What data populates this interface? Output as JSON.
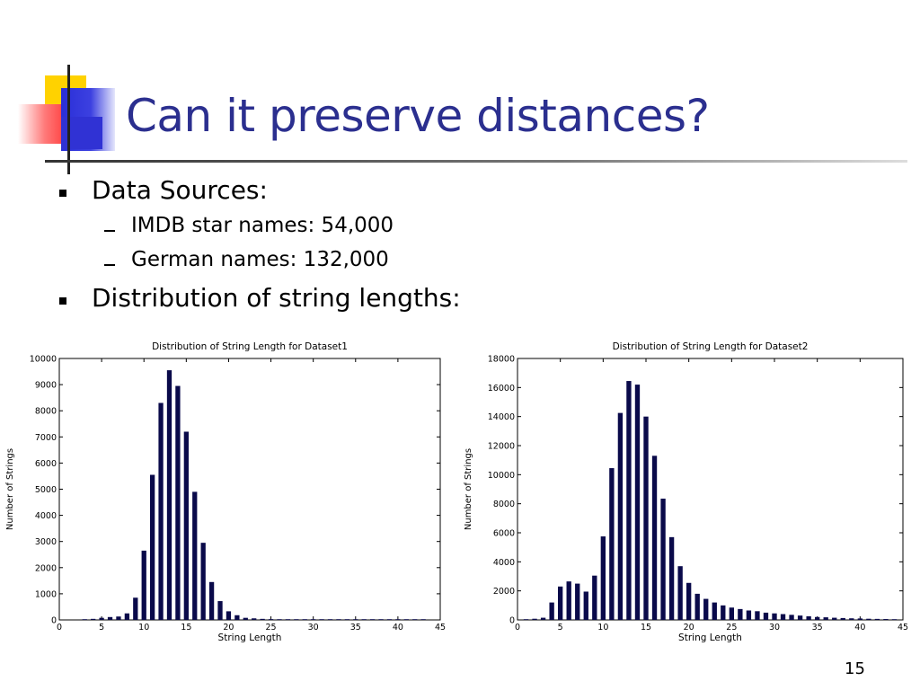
{
  "slide": {
    "title": "Can it preserve distances?",
    "page_number": "15",
    "bullets": [
      {
        "text": "Data Sources:"
      },
      {
        "text": "Distribution of string lengths:"
      }
    ],
    "sub_bullets": [
      {
        "text": "IMDB star names: 54,000"
      },
      {
        "text": "German names: 132,000"
      }
    ],
    "colors": {
      "title": "#2b2f8f",
      "bars": "#0a0a4a",
      "accent_yellow": "#ffd200",
      "accent_red": "#ff2020",
      "accent_blue": "#3032d4"
    }
  },
  "chart_data": [
    {
      "type": "bar",
      "title": "Distribution of String Length for Dataset1",
      "xlabel": "String Length",
      "ylabel": "Number of Strings",
      "xlim": [
        0,
        45
      ],
      "ylim": [
        0,
        10000
      ],
      "xticks": [
        0,
        5,
        10,
        15,
        20,
        25,
        30,
        35,
        40,
        45
      ],
      "yticks": [
        0,
        1000,
        2000,
        3000,
        4000,
        5000,
        6000,
        7000,
        8000,
        9000,
        10000
      ],
      "x": [
        3,
        4,
        5,
        6,
        7,
        8,
        9,
        10,
        11,
        12,
        13,
        14,
        15,
        16,
        17,
        18,
        19,
        20,
        21,
        22,
        23,
        24,
        25,
        26,
        27,
        28,
        29,
        30,
        31,
        32,
        33,
        34,
        35,
        36,
        37,
        38,
        39,
        40,
        41,
        42,
        43
      ],
      "values": [
        20,
        40,
        80,
        110,
        130,
        250,
        850,
        2650,
        5550,
        8300,
        9550,
        8950,
        7200,
        4900,
        2950,
        1450,
        720,
        330,
        180,
        80,
        60,
        40,
        30,
        20,
        15,
        10,
        8,
        8,
        6,
        5,
        5,
        4,
        3,
        3,
        2,
        2,
        2,
        2,
        1,
        1,
        1
      ]
    },
    {
      "type": "bar",
      "title": "Distribution of String Length for Dataset2",
      "xlabel": "String Length",
      "ylabel": "Number of Strings",
      "xlim": [
        0,
        45
      ],
      "ylim": [
        0,
        18000
      ],
      "xticks": [
        0,
        5,
        10,
        15,
        20,
        25,
        30,
        35,
        40,
        45
      ],
      "yticks": [
        0,
        2000,
        4000,
        6000,
        8000,
        10000,
        12000,
        14000,
        16000,
        18000
      ],
      "x": [
        1,
        2,
        3,
        4,
        5,
        6,
        7,
        8,
        9,
        10,
        11,
        12,
        13,
        14,
        15,
        16,
        17,
        18,
        19,
        20,
        21,
        22,
        23,
        24,
        25,
        26,
        27,
        28,
        29,
        30,
        31,
        32,
        33,
        34,
        35,
        36,
        37,
        38,
        39,
        40,
        41,
        42,
        43,
        44
      ],
      "values": [
        50,
        80,
        150,
        1200,
        2300,
        2650,
        2500,
        1950,
        3050,
        5750,
        10450,
        14250,
        16450,
        16200,
        14000,
        11300,
        8350,
        5700,
        3700,
        2550,
        1800,
        1450,
        1200,
        1000,
        850,
        750,
        650,
        600,
        500,
        450,
        400,
        350,
        300,
        250,
        200,
        180,
        150,
        130,
        110,
        100,
        80,
        70,
        60,
        50
      ]
    }
  ]
}
